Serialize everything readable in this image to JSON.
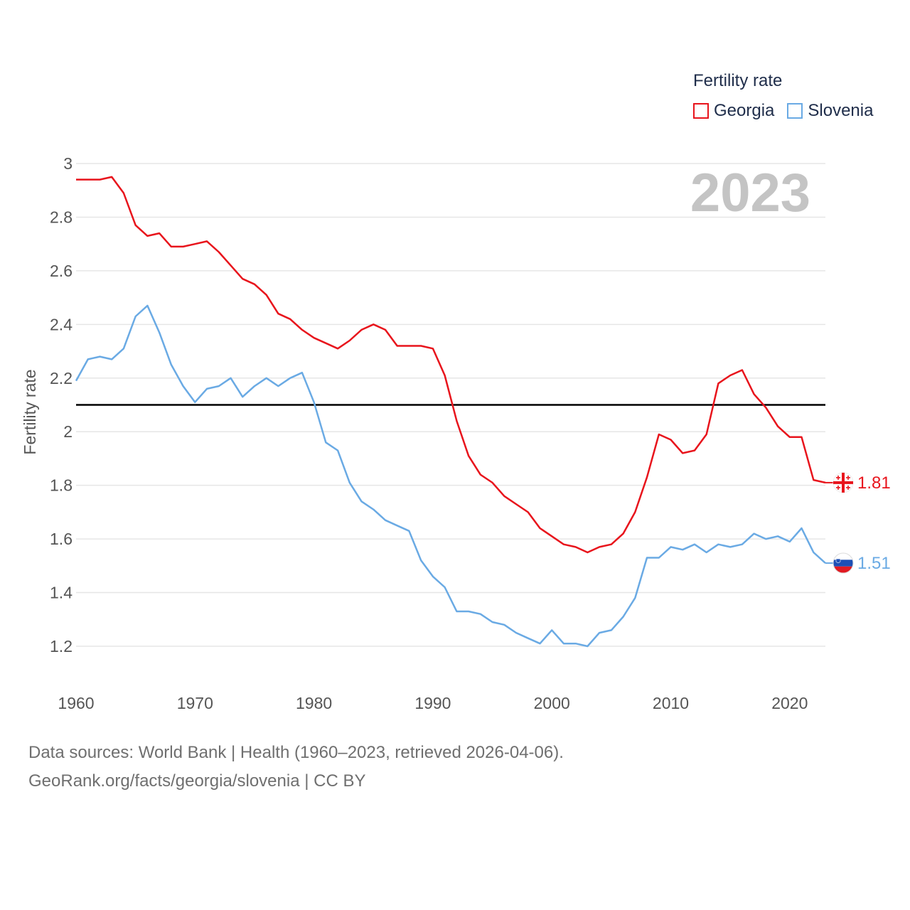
{
  "legend": {
    "title": "Fertility rate",
    "items": [
      "Georgia",
      "Slovenia"
    ]
  },
  "year_label": "2023",
  "source": {
    "line1": "Data sources: World Bank | Health (1960–2023, retrieved 2026-04-06).",
    "line2": "GeoRank.org/facts/georgia/slovenia | CC BY"
  },
  "colors": {
    "georgia": "#e8141c",
    "slovenia": "#6aaae4",
    "reference": "#000000",
    "grid": "#e6e6e6",
    "tick": "#555555"
  },
  "chart_data": {
    "type": "line",
    "title": "",
    "xlabel": "",
    "ylabel": "Fertility rate",
    "xlim": [
      1960,
      2023
    ],
    "ylim": [
      1.2,
      3.0
    ],
    "yticks": [
      1.2,
      1.4,
      1.6,
      1.8,
      2.0,
      2.2,
      2.4,
      2.6,
      2.8,
      3.0
    ],
    "ytick_labels": [
      "1.2",
      "1.4",
      "1.6",
      "1.8",
      "2",
      "2.2",
      "2.4",
      "2.6",
      "2.8",
      "3"
    ],
    "xticks": [
      1960,
      1970,
      1980,
      1990,
      2000,
      2010,
      2020
    ],
    "xtick_labels": [
      "1960",
      "1970",
      "1980",
      "1990",
      "2000",
      "2010",
      "2020"
    ],
    "reference_line": 2.1,
    "x": [
      1960,
      1961,
      1962,
      1963,
      1964,
      1965,
      1966,
      1967,
      1968,
      1969,
      1970,
      1971,
      1972,
      1973,
      1974,
      1975,
      1976,
      1977,
      1978,
      1979,
      1980,
      1981,
      1982,
      1983,
      1984,
      1985,
      1986,
      1987,
      1988,
      1989,
      1990,
      1991,
      1992,
      1993,
      1994,
      1995,
      1996,
      1997,
      1998,
      1999,
      2000,
      2001,
      2002,
      2003,
      2004,
      2005,
      2006,
      2007,
      2008,
      2009,
      2010,
      2011,
      2012,
      2013,
      2014,
      2015,
      2016,
      2017,
      2018,
      2019,
      2020,
      2021,
      2022,
      2023
    ],
    "series": [
      {
        "name": "Georgia",
        "end_label": "1.81",
        "values": [
          2.94,
          2.94,
          2.94,
          2.95,
          2.89,
          2.77,
          2.73,
          2.74,
          2.69,
          2.69,
          2.7,
          2.71,
          2.67,
          2.62,
          2.57,
          2.55,
          2.51,
          2.44,
          2.42,
          2.38,
          2.35,
          2.33,
          2.31,
          2.34,
          2.38,
          2.4,
          2.38,
          2.32,
          2.32,
          2.32,
          2.31,
          2.21,
          2.04,
          1.91,
          1.84,
          1.81,
          1.76,
          1.73,
          1.7,
          1.64,
          1.61,
          1.58,
          1.57,
          1.55,
          1.57,
          1.58,
          1.62,
          1.7,
          1.83,
          1.99,
          1.97,
          1.92,
          1.93,
          1.99,
          2.18,
          2.21,
          2.23,
          2.14,
          2.09,
          2.02,
          1.98,
          1.98,
          1.82,
          1.81
        ]
      },
      {
        "name": "Slovenia",
        "end_label": "1.51",
        "values": [
          2.19,
          2.27,
          2.28,
          2.27,
          2.31,
          2.43,
          2.47,
          2.37,
          2.25,
          2.17,
          2.11,
          2.16,
          2.17,
          2.2,
          2.13,
          2.17,
          2.2,
          2.17,
          2.2,
          2.22,
          2.11,
          1.96,
          1.93,
          1.81,
          1.74,
          1.71,
          1.67,
          1.65,
          1.63,
          1.52,
          1.46,
          1.42,
          1.33,
          1.33,
          1.32,
          1.29,
          1.28,
          1.25,
          1.23,
          1.21,
          1.26,
          1.21,
          1.21,
          1.2,
          1.25,
          1.26,
          1.31,
          1.38,
          1.53,
          1.53,
          1.57,
          1.56,
          1.58,
          1.55,
          1.58,
          1.57,
          1.58,
          1.62,
          1.6,
          1.61,
          1.59,
          1.64,
          1.55,
          1.51
        ]
      }
    ]
  }
}
